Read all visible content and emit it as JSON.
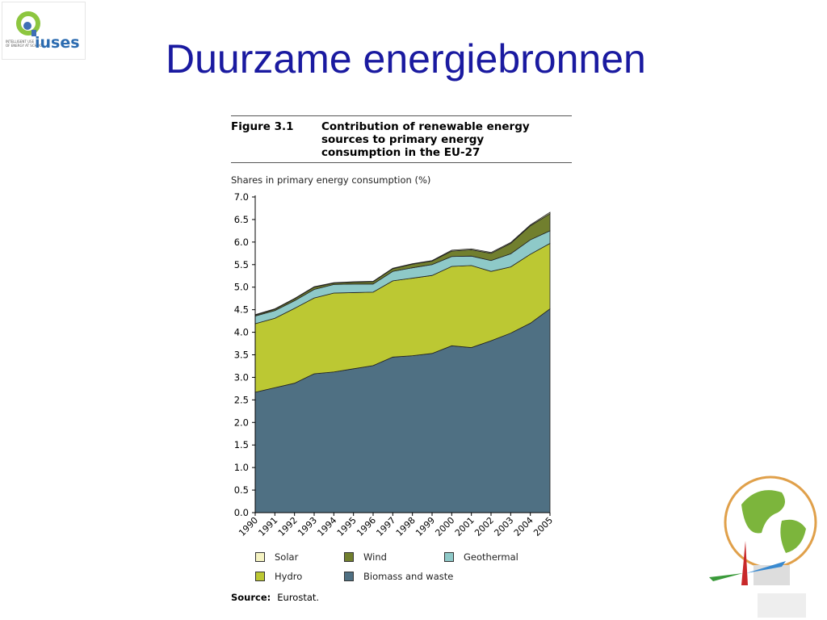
{
  "logo": {
    "text": "iuses",
    "tagline": "INTELLIGENT USE OF ENERGY AT SCHOOL"
  },
  "slide_title": "Duurzame energiebronnen",
  "figure": {
    "number": "Figure 3.1",
    "caption": "Contribution of renewable energy sources to primary energy consumption in the EU-27"
  },
  "source": {
    "label": "Source:",
    "value": "Eurostat."
  },
  "colors": {
    "Solar": "#f5f3c2",
    "Wind": "#717f2e",
    "Geothermal": "#8ec9c8",
    "Hydro": "#bcc833",
    "Biomass and waste": "#4f7083"
  },
  "chart_data": {
    "type": "area",
    "stacked": true,
    "ylabel": "Shares in primary energy consumption (%)",
    "ylim": [
      0,
      7
    ],
    "yticks": [
      "0.0",
      "0.5",
      "1.0",
      "1.5",
      "2.0",
      "2.5",
      "3.0",
      "3.5",
      "4.0",
      "4.5",
      "5.0",
      "5.5",
      "6.0",
      "6.5",
      "7.0"
    ],
    "categories": [
      "1990",
      "1991",
      "1992",
      "1993",
      "1994",
      "1995",
      "1996",
      "1997",
      "1998",
      "1999",
      "2000",
      "2001",
      "2002",
      "2003",
      "2004",
      "2005"
    ],
    "series": [
      {
        "name": "Biomass and waste",
        "values": [
          2.67,
          2.77,
          2.87,
          3.08,
          3.12,
          3.19,
          3.26,
          3.45,
          3.48,
          3.53,
          3.7,
          3.66,
          3.81,
          3.98,
          4.2,
          4.52
        ]
      },
      {
        "name": "Hydro",
        "values": [
          1.52,
          1.54,
          1.66,
          1.68,
          1.75,
          1.69,
          1.63,
          1.69,
          1.72,
          1.73,
          1.76,
          1.82,
          1.54,
          1.47,
          1.53,
          1.45
        ]
      },
      {
        "name": "Geothermal",
        "values": [
          0.17,
          0.17,
          0.17,
          0.19,
          0.19,
          0.19,
          0.18,
          0.21,
          0.23,
          0.24,
          0.22,
          0.21,
          0.24,
          0.29,
          0.32,
          0.28
        ]
      },
      {
        "name": "Wind",
        "values": [
          0.02,
          0.03,
          0.04,
          0.05,
          0.03,
          0.04,
          0.05,
          0.06,
          0.08,
          0.08,
          0.12,
          0.14,
          0.16,
          0.23,
          0.31,
          0.38
        ]
      },
      {
        "name": "Solar",
        "values": [
          0.01,
          0.01,
          0.01,
          0.01,
          0.01,
          0.01,
          0.01,
          0.01,
          0.01,
          0.01,
          0.02,
          0.02,
          0.02,
          0.02,
          0.02,
          0.03
        ]
      }
    ],
    "legend": [
      "Solar",
      "Wind",
      "Geothermal",
      "Hydro",
      "Biomass and waste"
    ],
    "legend_position": "bottom"
  }
}
